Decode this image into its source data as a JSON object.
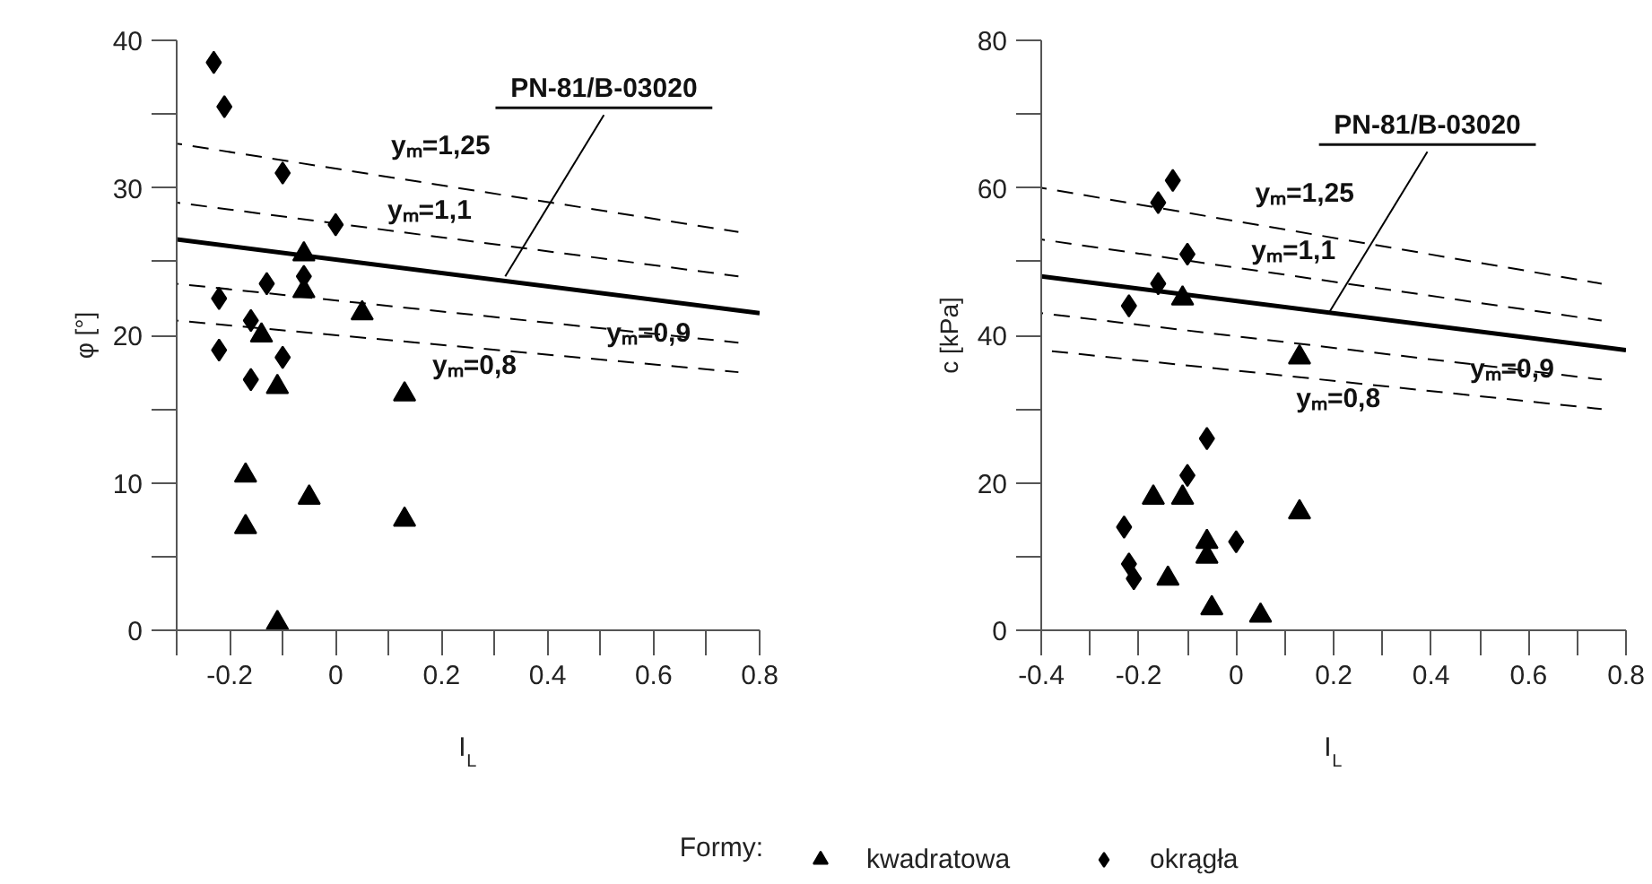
{
  "chart_data": [
    {
      "type": "scatter",
      "xlabel": "I$_{L}$",
      "ylabel": "φ [°]",
      "legend_title": "Formy:",
      "legend": "bottom",
      "xlim": [
        -0.3,
        0.8
      ],
      "ylim": [
        0,
        40
      ],
      "xticks": [
        {
          "value": -0.3,
          "label": null
        },
        -0.2,
        {
          "value": -0.1,
          "label": null
        },
        0,
        {
          "value": 0.1,
          "label": null
        },
        0.2,
        {
          "value": 0.3,
          "label": null
        },
        0.4,
        {
          "value": 0.5,
          "label": null
        },
        0.6,
        {
          "value": 0.7,
          "label": null
        },
        0.8
      ],
      "yticks": [
        0,
        {
          "value": 5,
          "label": null
        },
        10,
        {
          "value": 15,
          "label": null
        },
        20,
        {
          "value": 25,
          "label": null
        },
        30,
        {
          "value": 35,
          "label": null
        },
        40
      ],
      "series": [
        {
          "name": "kwadratowa",
          "marker": "triangle",
          "color": "#000000",
          "x": [
            -0.06,
            -0.06,
            0.05,
            -0.14,
            -0.11,
            0.13,
            -0.17,
            -0.05,
            -0.17,
            0.13,
            -0.11
          ],
          "values": [
            25.5,
            23,
            21.5,
            20,
            16.5,
            16,
            10.5,
            9,
            7,
            7.5,
            0.5
          ]
        },
        {
          "name": "okrągła",
          "marker": "diamond",
          "color": "#000000",
          "x": [
            -0.23,
            -0.21,
            -0.1,
            0.0,
            -0.06,
            -0.13,
            -0.22,
            -0.16,
            -0.22,
            -0.1,
            -0.16
          ],
          "values": [
            38.5,
            35.5,
            31,
            27.5,
            24,
            23.5,
            22.5,
            21,
            19,
            18.5,
            17
          ]
        },
        {
          "type": "line",
          "line_style": "solid",
          "color": "#000000",
          "x": [
            -0.3,
            0.8
          ],
          "values": [
            26.5,
            21.5
          ]
        },
        {
          "type": "line",
          "line_style": "dashed",
          "color": "#000000",
          "x": [
            -0.3,
            0.76
          ],
          "values": [
            33,
            27
          ]
        },
        {
          "type": "line",
          "line_style": "dashed",
          "color": "#000000",
          "x": [
            -0.3,
            0.76
          ],
          "values": [
            29,
            24
          ]
        },
        {
          "type": "line",
          "line_style": "dashed",
          "color": "#000000",
          "x": [
            -0.3,
            0.76
          ],
          "values": [
            23.5,
            19.5
          ]
        },
        {
          "type": "line",
          "line_style": "dashed",
          "color": "#000000",
          "x": [
            -0.3,
            0.76
          ],
          "values": [
            21,
            17.5
          ]
        }
      ],
      "annotations": [
        {
          "text": "PN-81/B-03020",
          "x": 0.32,
          "y": 24
        },
        "yₘ=1,25",
        "yₘ=1,1",
        "yₘ=0,9",
        "yₘ=0,8"
      ]
    },
    {
      "type": "scatter",
      "xlabel": "I$_{L}$",
      "ylabel": "c [kPa]",
      "xlim": [
        -0.4,
        0.8
      ],
      "ylim": [
        0,
        80
      ],
      "xticks": [
        -0.4,
        {
          "value": -0.3,
          "label": null
        },
        -0.2,
        {
          "value": -0.1,
          "label": null
        },
        0,
        {
          "value": 0.1,
          "label": null
        },
        0.2,
        {
          "value": 0.3,
          "label": null
        },
        0.4,
        {
          "value": 0.5,
          "label": null
        },
        0.6,
        {
          "value": 0.7,
          "label": null
        },
        0.8
      ],
      "yticks": [
        0,
        {
          "value": 10,
          "label": null
        },
        20,
        {
          "value": 30,
          "label": null
        },
        40,
        {
          "value": 50,
          "label": null
        },
        60,
        {
          "value": 70,
          "label": null
        },
        80
      ],
      "series": [
        {
          "marker": "triangle",
          "color": "#000000",
          "x": [
            -0.11,
            0.13,
            -0.17,
            -0.11,
            0.13,
            -0.06,
            -0.06,
            -0.14,
            -0.05,
            0.05
          ],
          "values": [
            45,
            37,
            18,
            18,
            16,
            12,
            10,
            7,
            3,
            2
          ]
        },
        {
          "marker": "diamond",
          "color": "#000000",
          "x": [
            -0.13,
            -0.16,
            -0.1,
            -0.16,
            -0.22,
            -0.06,
            -0.1,
            -0.23,
            -0.22,
            -0.21,
            0.0
          ],
          "values": [
            61,
            58,
            51,
            47,
            44,
            26,
            21,
            14,
            9,
            7,
            12
          ]
        },
        {
          "type": "line",
          "line_style": "solid",
          "color": "#000000",
          "x": [
            -0.4,
            0.8
          ],
          "values": [
            48,
            38
          ]
        },
        {
          "type": "line",
          "line_style": "dashed",
          "color": "#000000",
          "x": [
            -0.4,
            0.75
          ],
          "values": [
            60,
            47
          ]
        },
        {
          "type": "line",
          "line_style": "dashed",
          "color": "#000000",
          "x": [
            -0.4,
            0.75
          ],
          "values": [
            53,
            42
          ]
        },
        {
          "type": "line",
          "line_style": "dashed",
          "color": "#000000",
          "x": [
            -0.4,
            0.75
          ],
          "values": [
            43,
            34
          ]
        },
        {
          "type": "line",
          "line_style": "dashed",
          "color": "#000000",
          "x": [
            -0.4,
            0.75
          ],
          "values": [
            38,
            30
          ]
        }
      ],
      "annotations": [
        {
          "text": "PN-81/B-03020",
          "x": 0.19,
          "y": 43
        },
        "yₘ=1,25",
        "yₘ=1,1",
        "yₘ=0,9",
        "yₘ=0,8"
      ]
    }
  ]
}
